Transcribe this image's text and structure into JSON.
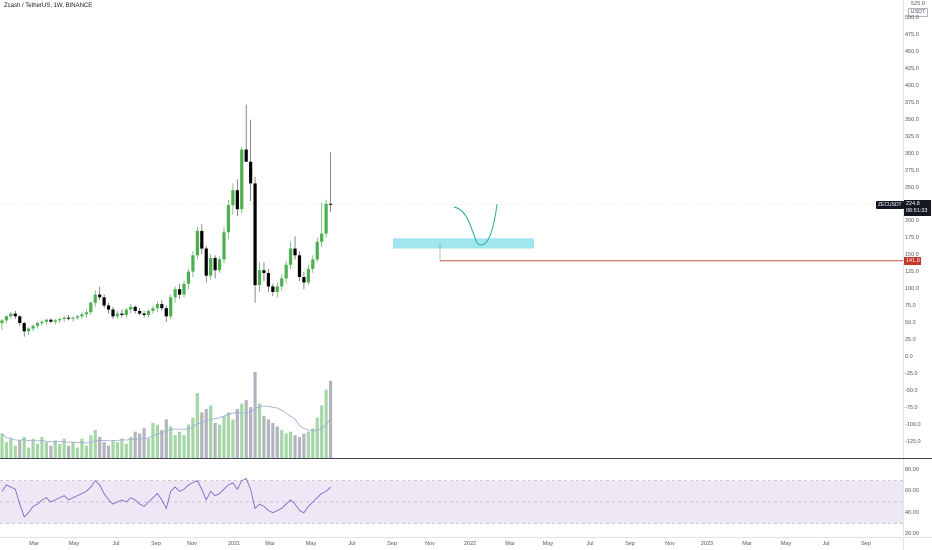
{
  "header": {
    "title": "Zcash / TetherUS, 1W, BINANCE"
  },
  "price_axis": {
    "unit_top": "525.0",
    "unit_label": "USDT",
    "ticks": [
      "500.0",
      "475.0",
      "450.0",
      "425.0",
      "400.0",
      "375.0",
      "350.0",
      "325.0",
      "300.0",
      "275.0",
      "250.0",
      "225.0",
      "200.0",
      "175.0",
      "150.0",
      "125.0",
      "100.0",
      "75.0",
      "50.0",
      "25.0",
      "0.0",
      "-25.0",
      "-50.0",
      "-75.0",
      "-100.0",
      "-125.0"
    ],
    "symbol_tag": "ZECUSDT",
    "last_price": "224.8",
    "countdown": "08:51:33",
    "line_price": "141.9"
  },
  "rsi_axis": {
    "ticks": [
      "80.00",
      "60.00",
      "40.00",
      "20.00"
    ]
  },
  "time_axis": {
    "ticks": [
      "Mar",
      "May",
      "Jul",
      "Sep",
      "Nov",
      "2021",
      "Mar",
      "May",
      "Jul",
      "Sep",
      "Nov",
      "2022",
      "Mar",
      "May",
      "Jul",
      "Sep",
      "Nov",
      "2023",
      "Mar",
      "May",
      "Jul",
      "Sep"
    ]
  },
  "colors": {
    "up": "#26a69a",
    "up_candle": "#4caf50",
    "down": "#000000",
    "vol_up": "#a5d6a7",
    "vol_down": "#b2b5be",
    "zone": "#80deea",
    "line": "#c0392b",
    "rsi_band": "#ede7f6",
    "rsi_line": "#7e57c2",
    "ma_line": "#9fa8da"
  },
  "chart_data": {
    "type": "candlestick",
    "symbol": "ZECUSDT",
    "interval": "1W",
    "exchange": "BINANCE",
    "ylim": [
      -140,
      525
    ],
    "candles": [
      [
        50,
        56,
        40,
        54
      ],
      [
        54,
        62,
        50,
        60
      ],
      [
        60,
        66,
        56,
        64
      ],
      [
        64,
        68,
        56,
        60
      ],
      [
        60,
        62,
        46,
        50
      ],
      [
        50,
        52,
        30,
        38
      ],
      [
        38,
        44,
        32,
        42
      ],
      [
        42,
        48,
        38,
        46
      ],
      [
        46,
        52,
        42,
        50
      ],
      [
        50,
        54,
        46,
        52
      ],
      [
        52,
        56,
        48,
        55
      ],
      [
        55,
        57,
        50,
        52
      ],
      [
        52,
        56,
        48,
        54
      ],
      [
        54,
        58,
        50,
        56
      ],
      [
        56,
        60,
        52,
        58
      ],
      [
        58,
        62,
        54,
        57
      ],
      [
        57,
        60,
        52,
        58
      ],
      [
        58,
        62,
        55,
        60
      ],
      [
        60,
        66,
        56,
        63
      ],
      [
        63,
        70,
        58,
        66
      ],
      [
        66,
        82,
        62,
        80
      ],
      [
        80,
        98,
        74,
        92
      ],
      [
        92,
        104,
        84,
        88
      ],
      [
        88,
        92,
        72,
        76
      ],
      [
        76,
        80,
        64,
        70
      ],
      [
        70,
        74,
        56,
        60
      ],
      [
        60,
        68,
        56,
        64
      ],
      [
        64,
        70,
        58,
        62
      ],
      [
        62,
        72,
        58,
        70
      ],
      [
        70,
        78,
        64,
        74
      ],
      [
        74,
        76,
        64,
        68
      ],
      [
        68,
        72,
        62,
        64
      ],
      [
        64,
        68,
        58,
        62
      ],
      [
        62,
        70,
        58,
        68
      ],
      [
        68,
        76,
        64,
        72
      ],
      [
        72,
        82,
        66,
        78
      ],
      [
        78,
        84,
        68,
        72
      ],
      [
        72,
        76,
        52,
        60
      ],
      [
        60,
        92,
        56,
        88
      ],
      [
        88,
        104,
        80,
        100
      ],
      [
        100,
        108,
        86,
        92
      ],
      [
        92,
        112,
        88,
        108
      ],
      [
        108,
        130,
        100,
        126
      ],
      [
        126,
        156,
        118,
        150
      ],
      [
        150,
        192,
        144,
        186
      ],
      [
        186,
        196,
        152,
        160
      ],
      [
        160,
        164,
        110,
        120
      ],
      [
        120,
        152,
        114,
        146
      ],
      [
        146,
        150,
        116,
        128
      ],
      [
        128,
        148,
        124,
        144
      ],
      [
        144,
        192,
        138,
        184
      ],
      [
        184,
        232,
        174,
        224
      ],
      [
        224,
        256,
        210,
        246
      ],
      [
        246,
        262,
        208,
        218
      ],
      [
        218,
        310,
        212,
        306
      ],
      [
        306,
        372,
        292,
        288
      ],
      [
        288,
        350,
        230,
        256
      ],
      [
        256,
        266,
        80,
        106
      ],
      [
        106,
        140,
        96,
        128
      ],
      [
        128,
        140,
        112,
        124
      ],
      [
        124,
        130,
        96,
        104
      ],
      [
        104,
        108,
        90,
        96
      ],
      [
        96,
        110,
        88,
        104
      ],
      [
        104,
        122,
        98,
        116
      ],
      [
        116,
        142,
        108,
        136
      ],
      [
        136,
        170,
        130,
        160
      ],
      [
        160,
        178,
        144,
        150
      ],
      [
        150,
        156,
        112,
        118
      ],
      [
        118,
        126,
        100,
        110
      ],
      [
        110,
        136,
        106,
        130
      ],
      [
        130,
        150,
        124,
        144
      ],
      [
        144,
        176,
        140,
        170
      ],
      [
        170,
        228,
        162,
        182
      ],
      [
        182,
        232,
        176,
        226
      ],
      [
        226,
        302,
        214,
        224.8
      ]
    ],
    "volume": [
      28,
      18,
      22,
      14,
      20,
      24,
      12,
      22,
      16,
      24,
      18,
      14,
      20,
      16,
      22,
      14,
      18,
      12,
      22,
      14,
      26,
      32,
      24,
      18,
      14,
      20,
      18,
      22,
      16,
      24,
      30,
      28,
      34,
      22,
      40,
      38,
      32,
      44,
      36,
      26,
      30,
      26,
      38,
      46,
      74,
      52,
      56,
      60,
      40,
      38,
      48,
      52,
      44,
      56,
      62,
      66,
      58,
      98,
      62,
      48,
      44,
      40,
      36,
      32,
      28,
      30,
      26,
      24,
      28,
      30,
      34,
      46,
      60,
      78,
      88
    ],
    "volume_ylim": [
      0,
      130
    ],
    "volume_colors_down": [
      4,
      11,
      15,
      22,
      23,
      24,
      30,
      31,
      32,
      36,
      37,
      45,
      46,
      48,
      53,
      55,
      56,
      57,
      59,
      60,
      61,
      62,
      66,
      67,
      68,
      74
    ],
    "rsi": [
      60,
      66,
      64,
      62,
      48,
      36,
      40,
      46,
      48,
      52,
      54,
      50,
      52,
      54,
      56,
      52,
      54,
      56,
      58,
      60,
      64,
      70,
      66,
      58,
      52,
      48,
      50,
      52,
      50,
      54,
      52,
      48,
      46,
      50,
      54,
      58,
      52,
      44,
      60,
      64,
      60,
      62,
      66,
      68,
      70,
      62,
      52,
      60,
      56,
      58,
      62,
      66,
      68,
      62,
      70,
      72,
      62,
      44,
      48,
      46,
      42,
      40,
      42,
      44,
      48,
      52,
      48,
      42,
      40,
      46,
      50,
      54,
      58,
      60,
      64
    ],
    "rsi_levels": {
      "upper": 70,
      "middle": 50,
      "lower": 30
    },
    "rsi_ylim": [
      10,
      90
    ],
    "horizontal_line": 141.9,
    "zone": {
      "low": 160,
      "high": 175
    }
  }
}
